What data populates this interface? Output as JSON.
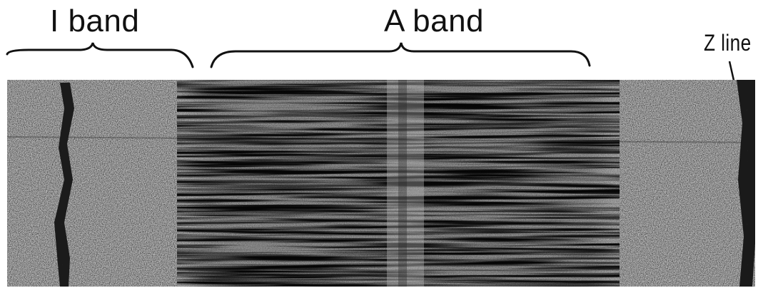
{
  "figure": {
    "labels": {
      "i_band": "I band",
      "a_band": "A band",
      "z_line": "Z line"
    },
    "colors": {
      "background": "#ffffff",
      "micrograph_base": "#bdbdbd",
      "dense_band": "#1a1a1a",
      "text": "#111111"
    }
  }
}
